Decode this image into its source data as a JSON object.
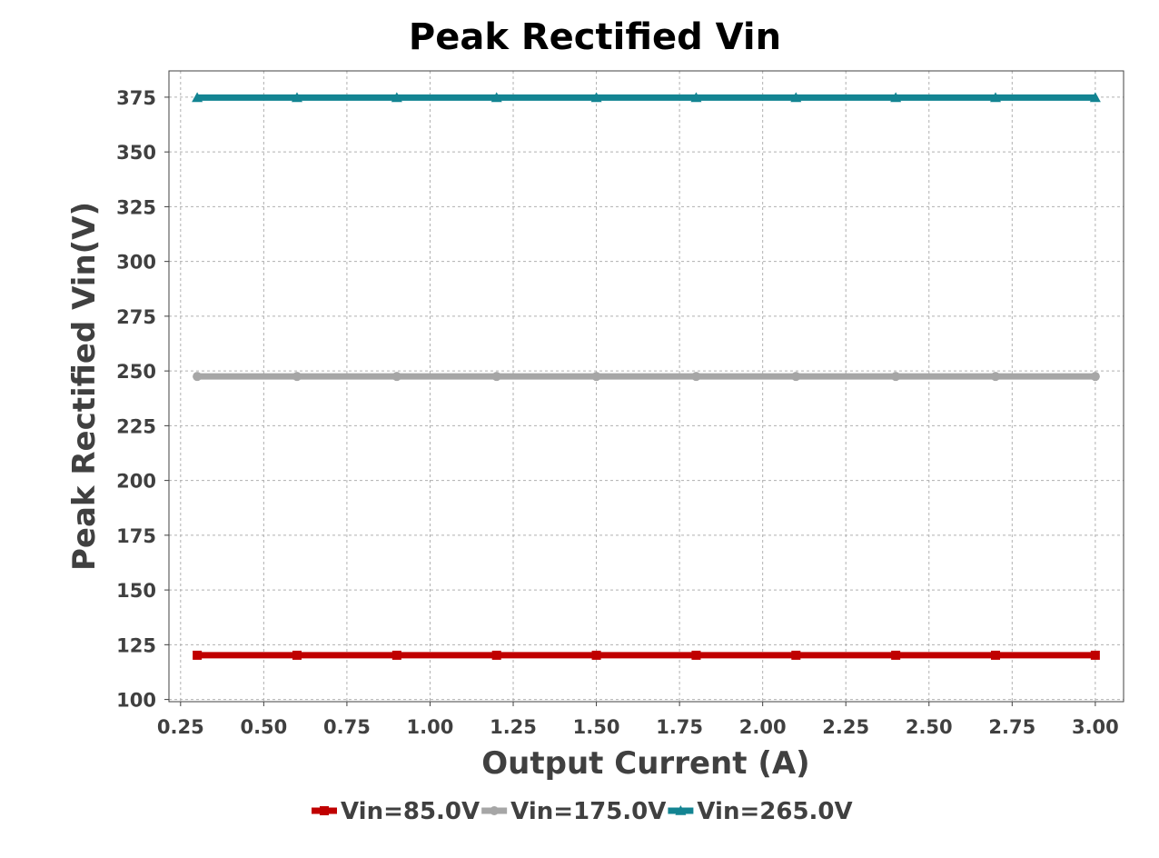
{
  "chart_data": {
    "type": "line",
    "title": "Peak Rectified Vin",
    "xlabel": "Output Current (A)",
    "ylabel": "Peak Rectified Vin(V)",
    "x": [
      0.3,
      0.6,
      0.9,
      1.2,
      1.5,
      1.8,
      2.1,
      2.4,
      2.7,
      3.0
    ],
    "xlim": [
      0.215,
      3.085
    ],
    "ylim": [
      99,
      387
    ],
    "x_ticks": [
      "0.25",
      "0.50",
      "0.75",
      "1.00",
      "1.25",
      "1.50",
      "1.75",
      "2.00",
      "2.25",
      "2.50",
      "2.75",
      "3.00"
    ],
    "y_ticks": [
      "100",
      "125",
      "150",
      "175",
      "200",
      "225",
      "250",
      "275",
      "300",
      "325",
      "350",
      "375"
    ],
    "grid": true,
    "legend_position": "bottom-center",
    "series": [
      {
        "name": "Vin=85.0V",
        "color": "#c00000",
        "marker": "square",
        "values": [
          120.2,
          120.2,
          120.2,
          120.2,
          120.2,
          120.2,
          120.2,
          120.2,
          120.2,
          120.2
        ]
      },
      {
        "name": "Vin=175.0V",
        "color": "#a6a6a6",
        "marker": "circle",
        "values": [
          247.5,
          247.5,
          247.5,
          247.5,
          247.5,
          247.5,
          247.5,
          247.5,
          247.5,
          247.5
        ]
      },
      {
        "name": "Vin=265.0V",
        "color": "#138492",
        "marker": "triangle",
        "values": [
          374.8,
          374.8,
          374.8,
          374.8,
          374.8,
          374.8,
          374.8,
          374.8,
          374.8,
          374.8
        ]
      }
    ]
  }
}
